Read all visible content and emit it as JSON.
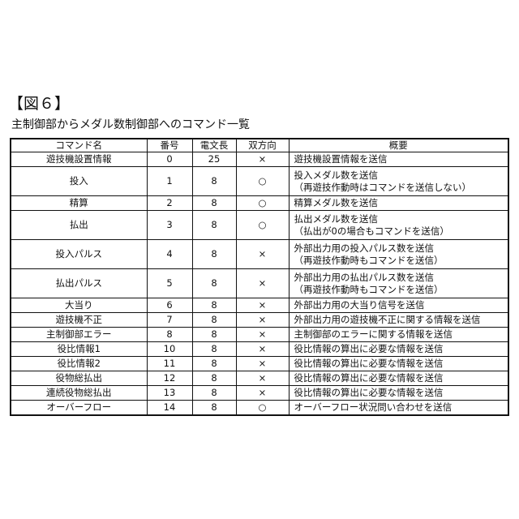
{
  "figure_label": "【図６】",
  "subtitle": "主制御部からメダル数制御部へのコマンド一覧",
  "table": {
    "headers": [
      "コマンド名",
      "番号",
      "電文長",
      "双方向",
      "概要"
    ],
    "rows": [
      {
        "name": "遊技機設置情報",
        "number": "0",
        "length": "25",
        "bidirectional": "×",
        "summary": [
          "遊技機設置情報を送信"
        ]
      },
      {
        "name": "投入",
        "number": "1",
        "length": "8",
        "bidirectional": "○",
        "summary": [
          "投入メダル数を送信",
          "（再遊技作動時はコマンドを送信しない）"
        ]
      },
      {
        "name": "精算",
        "number": "2",
        "length": "8",
        "bidirectional": "○",
        "summary": [
          "精算メダル数を送信"
        ]
      },
      {
        "name": "払出",
        "number": "3",
        "length": "8",
        "bidirectional": "○",
        "summary": [
          "払出メダル数を送信",
          "（払出が0の場合もコマンドを送信）"
        ]
      },
      {
        "name": "投入パルス",
        "number": "4",
        "length": "8",
        "bidirectional": "×",
        "summary": [
          "外部出力用の投入パルス数を送信",
          "（再遊技作動時もコマンドを送信）"
        ]
      },
      {
        "name": "払出パルス",
        "number": "5",
        "length": "8",
        "bidirectional": "×",
        "summary": [
          "外部出力用の払出パルス数を送信",
          "（再遊技作動時もコマンドを送信）"
        ]
      },
      {
        "name": "大当り",
        "number": "6",
        "length": "8",
        "bidirectional": "×",
        "summary": [
          "外部出力用の大当り信号を送信"
        ]
      },
      {
        "name": "遊技機不正",
        "number": "7",
        "length": "8",
        "bidirectional": "×",
        "summary": [
          "外部出力用の遊技機不正に関する情報を送信"
        ]
      },
      {
        "name": "主制御部エラー",
        "number": "8",
        "length": "8",
        "bidirectional": "×",
        "summary": [
          "主制御部のエラーに関する情報を送信"
        ]
      },
      {
        "name": "役比情報1",
        "number": "10",
        "length": "8",
        "bidirectional": "×",
        "summary": [
          "役比情報の算出に必要な情報を送信"
        ]
      },
      {
        "name": "役比情報2",
        "number": "11",
        "length": "8",
        "bidirectional": "×",
        "summary": [
          "役比情報の算出に必要な情報を送信"
        ]
      },
      {
        "name": "役物総払出",
        "number": "12",
        "length": "8",
        "bidirectional": "×",
        "summary": [
          "役比情報の算出に必要な情報を送信"
        ]
      },
      {
        "name": "連続役物総払出",
        "number": "13",
        "length": "8",
        "bidirectional": "×",
        "summary": [
          "役比情報の算出に必要な情報を送信"
        ]
      },
      {
        "name": "オーバーフロー",
        "number": "14",
        "length": "8",
        "bidirectional": "○",
        "summary": [
          "オーバーフロー状況問い合わせを送信"
        ]
      }
    ]
  }
}
